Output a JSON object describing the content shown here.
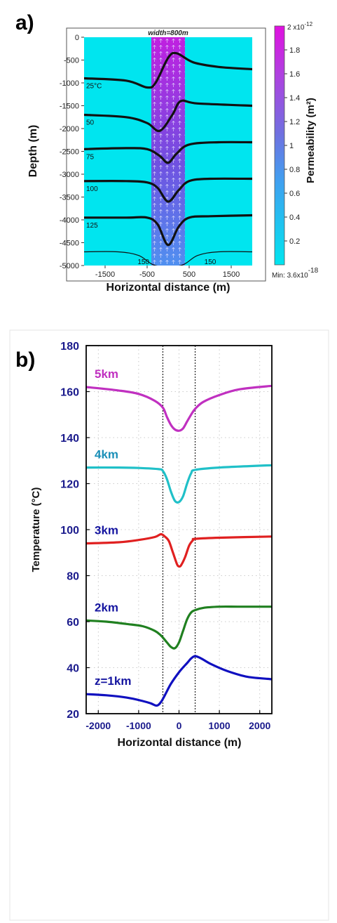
{
  "chart_data": [
    {
      "type": "heatmap",
      "panel_label": "a)",
      "title": "width=800m",
      "xlabel": "Horizontal distance  (m)",
      "ylabel": "Depth  (m)",
      "xlim": [
        -2000,
        2000
      ],
      "ylim": [
        -5000,
        0
      ],
      "x_ticks": [
        -1500,
        -500,
        500,
        1500
      ],
      "x_tick_labels": [
        "-1500",
        "-500",
        "500",
        "1500"
      ],
      "y_ticks": [
        0,
        -500,
        -1000,
        -1500,
        -2000,
        -2500,
        -3000,
        -3500,
        -4000,
        -4500,
        -5000
      ],
      "y_tick_labels": [
        "0",
        "-500",
        "-1000",
        "-1500",
        "-2000",
        "-2500",
        "-3000",
        "-3500",
        "-4000",
        "-4500",
        "-5000"
      ],
      "colorbar": {
        "label": "Permeability  (m²)",
        "max_label": "2 x10",
        "max_exponent": "-12",
        "min_label": "Min: 3.6x10",
        "min_exponent": "-18",
        "ticks": [
          1.8,
          1.6,
          1.4,
          1.2,
          1,
          0.8,
          0.6,
          0.4,
          0.2
        ],
        "tick_labels": [
          "1.8",
          "1.6",
          "1.4",
          "1.2",
          "1",
          "0.8",
          "0.6",
          "0.4",
          "0.2"
        ],
        "color_low": "#00e5ef",
        "color_high": "#e010e0"
      },
      "fault_zone": {
        "x_min": -400,
        "x_max": 400,
        "width_m": 800
      },
      "background_color": "#00e5ef",
      "isotherms": [
        {
          "label": "25°C",
          "points": [
            [
              -2000,
              -900
            ],
            [
              -1000,
              -950
            ],
            [
              -500,
              -1100
            ],
            [
              -300,
              -1000
            ],
            [
              0,
              -450
            ],
            [
              200,
              -350
            ],
            [
              600,
              -550
            ],
            [
              1200,
              -650
            ],
            [
              2000,
              -700
            ]
          ]
        },
        {
          "label": "50",
          "points": [
            [
              -2000,
              -1700
            ],
            [
              -1000,
              -1750
            ],
            [
              -500,
              -1880
            ],
            [
              -200,
              -2050
            ],
            [
              100,
              -1700
            ],
            [
              300,
              -1400
            ],
            [
              700,
              -1450
            ],
            [
              2000,
              -1500
            ]
          ]
        },
        {
          "label": "75",
          "points": [
            [
              -2000,
              -2450
            ],
            [
              -1000,
              -2430
            ],
            [
              -500,
              -2450
            ],
            [
              -200,
              -2600
            ],
            [
              0,
              -2750
            ],
            [
              200,
              -2550
            ],
            [
              500,
              -2350
            ],
            [
              1200,
              -2300
            ],
            [
              2000,
              -2300
            ]
          ]
        },
        {
          "label": "100",
          "points": [
            [
              -2000,
              -3150
            ],
            [
              -1000,
              -3150
            ],
            [
              -500,
              -3180
            ],
            [
              -250,
              -3300
            ],
            [
              0,
              -3600
            ],
            [
              250,
              -3350
            ],
            [
              500,
              -3150
            ],
            [
              1000,
              -3100
            ],
            [
              2000,
              -3100
            ]
          ]
        },
        {
          "label": "125",
          "points": [
            [
              -2000,
              -3950
            ],
            [
              -1000,
              -3950
            ],
            [
              -500,
              -3950
            ],
            [
              -250,
              -4100
            ],
            [
              0,
              -4550
            ],
            [
              250,
              -4150
            ],
            [
              500,
              -3950
            ],
            [
              1000,
              -3920
            ],
            [
              2000,
              -3900
            ]
          ]
        },
        {
          "label": "150",
          "points": [
            [
              -2000,
              -4700
            ],
            [
              -1200,
              -4700
            ],
            [
              -700,
              -4780
            ],
            [
              -300,
              -5000
            ],
            [
              300,
              -5000
            ],
            [
              700,
              -4780
            ],
            [
              1200,
              -4700
            ],
            [
              2000,
              -4700
            ]
          ]
        }
      ],
      "isotherm_label_150_right": "150"
    },
    {
      "type": "line",
      "panel_label": "b)",
      "xlabel": "Horizontal distance  (m)",
      "ylabel": "Temperature    (°C)",
      "xlim": [
        -2300,
        2300
      ],
      "ylim": [
        20,
        180
      ],
      "x_ticks": [
        -2000,
        -1000,
        0,
        1000,
        2000
      ],
      "x_tick_labels": [
        "-2000",
        "-1000",
        "0",
        "1000",
        "2000"
      ],
      "y_ticks": [
        20,
        40,
        60,
        80,
        100,
        120,
        140,
        160,
        180
      ],
      "y_tick_labels": [
        "20",
        "40",
        "60",
        "80",
        "100",
        "120",
        "140",
        "160",
        "180"
      ],
      "grid": true,
      "fault_boundaries": [
        -400,
        400
      ],
      "series": [
        {
          "name": "5km",
          "color": "#c030c0",
          "x": [
            -2300,
            -1500,
            -1000,
            -600,
            -400,
            -300,
            -200,
            -100,
            0,
            100,
            200,
            300,
            400,
            600,
            1000,
            1500,
            2300
          ],
          "values": [
            162,
            160.5,
            159,
            156,
            153,
            149,
            145.5,
            143.5,
            143,
            144,
            147,
            150,
            152.5,
            155.5,
            158.5,
            161,
            162.5
          ]
        },
        {
          "name": "4km",
          "color": "#20c0c8",
          "x": [
            -2300,
            -1500,
            -1000,
            -500,
            -400,
            -300,
            -200,
            -100,
            0,
            100,
            200,
            300,
            400,
            1000,
            2300
          ],
          "values": [
            127,
            127,
            126.8,
            126.3,
            125.5,
            122,
            116.5,
            112.5,
            112,
            114.5,
            120,
            124.5,
            126,
            127,
            128
          ]
        },
        {
          "name": "3km",
          "color": "#e02020",
          "x": [
            -2300,
            -1500,
            -1000,
            -600,
            -450,
            -350,
            -250,
            -150,
            -50,
            0,
            50,
            150,
            250,
            350,
            400,
            1000,
            2300
          ],
          "values": [
            94,
            94.5,
            95.5,
            96.8,
            98,
            97,
            95,
            90,
            85,
            84,
            84.5,
            88,
            93,
            95.5,
            96,
            96.5,
            97
          ]
        },
        {
          "name": "2km",
          "color": "#208020",
          "x": [
            -2300,
            -1800,
            -1300,
            -900,
            -600,
            -450,
            -300,
            -200,
            -100,
            0,
            100,
            200,
            300,
            400,
            600,
            1000,
            1500,
            2300
          ],
          "values": [
            60.5,
            60,
            59,
            58,
            56,
            54,
            51,
            49,
            48.5,
            51,
            56,
            61,
            64,
            65,
            66,
            66.5,
            66.5,
            66.5
          ]
        },
        {
          "name": "z=1km",
          "color": "#1010c0",
          "x": [
            -2300,
            -1800,
            -1300,
            -900,
            -700,
            -550,
            -450,
            -350,
            -200,
            0,
            200,
            300,
            400,
            550,
            800,
            1200,
            1700,
            2300
          ],
          "values": [
            28.5,
            28,
            27,
            25.5,
            24.5,
            23.5,
            25,
            28,
            33,
            38,
            42,
            44,
            45,
            44,
            41.5,
            38.5,
            36,
            35
          ]
        }
      ]
    }
  ]
}
